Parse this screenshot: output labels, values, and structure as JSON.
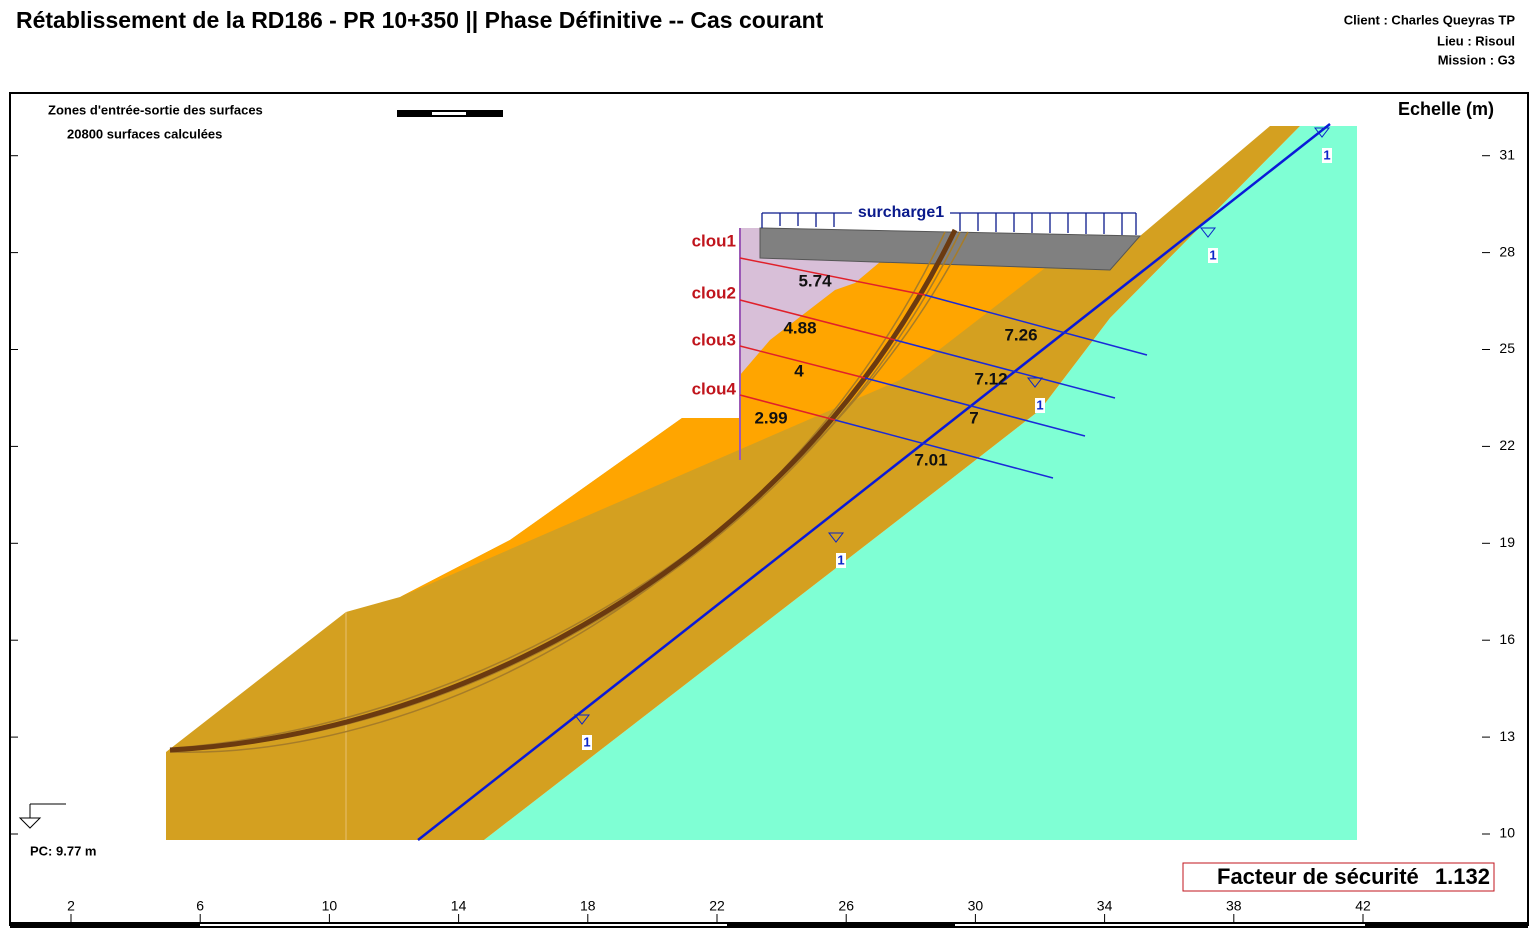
{
  "header": {
    "title": "Rétablissement de la RD186 - PR 10+350 || Phase Définitive -- Cas courant",
    "client": "Client : Charles Queyras TP",
    "lieu": "Lieu : Risoul",
    "mission": "Mission : G3"
  },
  "info": {
    "zones": "Zones d'entrée-sortie des surfaces",
    "surfaces": "20800 surfaces calculées"
  },
  "scale_label": "Echelle (m)",
  "x_axis": {
    "ticks": [
      2,
      6,
      10,
      14,
      18,
      22,
      26,
      30,
      34,
      38,
      42
    ]
  },
  "y_axis": {
    "ticks": [
      10,
      13,
      16,
      19,
      22,
      25,
      28,
      31
    ]
  },
  "surcharge": "surcharge1",
  "nails": [
    "clou1",
    "clou2",
    "clou3",
    "clou4"
  ],
  "forces": [
    5.74,
    4.88,
    4,
    2.99,
    7.26,
    7.12,
    7,
    7.01
  ],
  "piezo_labels": [
    1,
    1,
    1,
    1,
    1
  ],
  "pc": "PC: 9.77 m",
  "safety": {
    "label": "Facteur de sécurité",
    "value": 1.132
  }
}
